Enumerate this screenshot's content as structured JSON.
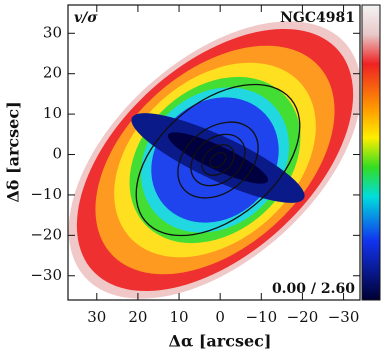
{
  "chart_data": {
    "type": "map",
    "xlabel": "Δα [arcsec]",
    "ylabel": "Δδ [arcsec]",
    "xlim": [
      37,
      -34
    ],
    "ylim": [
      -36,
      37
    ],
    "xticks": [
      30,
      20,
      10,
      0,
      {
        "value": -10,
        "label": "−10"
      },
      {
        "value": -20,
        "label": "−20"
      },
      {
        "value": -30,
        "label": "−30"
      }
    ],
    "yticks": [
      {
        "value": -30,
        "label": "−30"
      },
      {
        "value": -20,
        "label": "−20"
      },
      {
        "value": -10,
        "label": "−10"
      },
      0,
      10,
      20,
      30
    ],
    "annotations": {
      "quantity": "v/σ",
      "galaxy": "NGC4981",
      "range": "0.00 / 2.60"
    }
  }
}
